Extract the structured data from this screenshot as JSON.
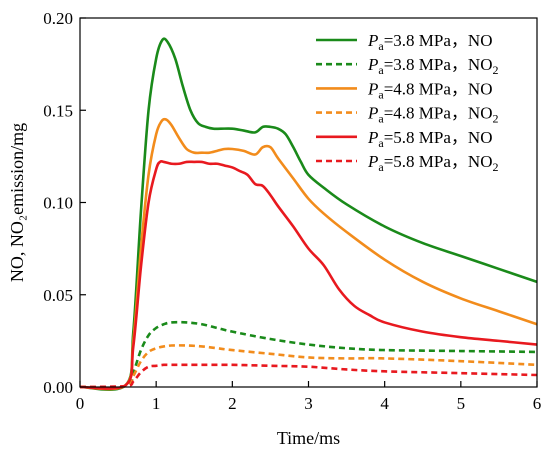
{
  "chart_data": {
    "type": "line",
    "xlabel": "Time/ms",
    "ylabel": "NO, NO₂emission/mg",
    "xlim": [
      0,
      6
    ],
    "ylim": [
      0,
      0.2
    ],
    "x_ticks": [
      0,
      1,
      2,
      3,
      4,
      5,
      6
    ],
    "x_tick_labels": [
      "0",
      "1",
      "2",
      "3",
      "4",
      "5",
      "6"
    ],
    "y_ticks": [
      0,
      0.05,
      0.1,
      0.15,
      0.2
    ],
    "y_tick_labels": [
      "0.00",
      "0.05",
      "0.10",
      "0.15",
      "0.20"
    ],
    "grid": false,
    "legend_position": "top-right",
    "series": [
      {
        "legend": {
          "italic": "P",
          "sub": "a",
          "rest": "=3.8 MPa，NO",
          "sub2": ""
        },
        "color": "#1a8a1a",
        "style": "solid",
        "x": [
          0,
          0.6,
          0.7,
          0.8,
          0.9,
          1.0,
          1.08,
          1.15,
          1.25,
          1.35,
          1.45,
          1.55,
          1.65,
          1.75,
          1.85,
          2.0,
          2.15,
          2.3,
          2.4,
          2.5,
          2.6,
          2.7,
          2.8,
          2.9,
          3.0,
          3.2,
          3.5,
          4.0,
          4.5,
          5.0,
          5.5,
          6.0
        ],
        "y": [
          0,
          0.001,
          0.03,
          0.095,
          0.15,
          0.178,
          0.188,
          0.187,
          0.178,
          0.163,
          0.15,
          0.143,
          0.141,
          0.14,
          0.14,
          0.14,
          0.139,
          0.138,
          0.141,
          0.141,
          0.14,
          0.137,
          0.13,
          0.122,
          0.115,
          0.108,
          0.099,
          0.087,
          0.078,
          0.071,
          0.064,
          0.057
        ]
      },
      {
        "legend": {
          "italic": "P",
          "sub": "a",
          "rest": "=3.8 MPa，NO",
          "sub2": "2"
        },
        "color": "#1a8a1a",
        "style": "dashed",
        "x": [
          0,
          0.6,
          0.7,
          0.8,
          0.9,
          1.0,
          1.1,
          1.2,
          1.4,
          1.6,
          1.8,
          2.0,
          2.5,
          3.0,
          3.5,
          4.0,
          5.0,
          6.0
        ],
        "y": [
          0,
          0.0005,
          0.008,
          0.02,
          0.028,
          0.032,
          0.034,
          0.035,
          0.035,
          0.034,
          0.032,
          0.03,
          0.026,
          0.023,
          0.021,
          0.02,
          0.0195,
          0.019
        ]
      },
      {
        "legend": {
          "italic": "P",
          "sub": "a",
          "rest": "=4.8 MPa，NO",
          "sub2": ""
        },
        "color": "#f28c1c",
        "style": "solid",
        "x": [
          0,
          0.6,
          0.7,
          0.8,
          0.9,
          1.0,
          1.07,
          1.13,
          1.2,
          1.3,
          1.4,
          1.5,
          1.6,
          1.7,
          1.8,
          1.9,
          2.0,
          2.15,
          2.3,
          2.4,
          2.5,
          2.6,
          2.8,
          3.0,
          3.2,
          3.5,
          4.0,
          4.5,
          5.0,
          5.5,
          6.0
        ],
        "y": [
          0,
          0.001,
          0.025,
          0.075,
          0.115,
          0.137,
          0.144,
          0.145,
          0.142,
          0.135,
          0.129,
          0.127,
          0.127,
          0.127,
          0.128,
          0.129,
          0.129,
          0.128,
          0.126,
          0.13,
          0.13,
          0.124,
          0.113,
          0.102,
          0.094,
          0.084,
          0.069,
          0.057,
          0.048,
          0.041,
          0.034
        ]
      },
      {
        "legend": {
          "italic": "P",
          "sub": "a",
          "rest": "=4.8 MPa，NO",
          "sub2": "2"
        },
        "color": "#f28c1c",
        "style": "dashed",
        "x": [
          0,
          0.6,
          0.7,
          0.8,
          0.9,
          1.0,
          1.1,
          1.2,
          1.4,
          1.6,
          1.8,
          2.0,
          2.5,
          3.0,
          3.5,
          4.0,
          5.0,
          6.0
        ],
        "y": [
          0,
          0.0005,
          0.006,
          0.014,
          0.019,
          0.021,
          0.022,
          0.0225,
          0.0225,
          0.022,
          0.021,
          0.02,
          0.018,
          0.016,
          0.0155,
          0.0155,
          0.014,
          0.012
        ]
      },
      {
        "legend": {
          "italic": "P",
          "sub": "a",
          "rest": "=5.8 MPa，NO",
          "sub2": ""
        },
        "color": "#e8191f",
        "style": "solid",
        "x": [
          0,
          0.6,
          0.7,
          0.8,
          0.9,
          1.0,
          1.05,
          1.1,
          1.2,
          1.3,
          1.4,
          1.5,
          1.6,
          1.7,
          1.8,
          1.9,
          2.0,
          2.1,
          2.2,
          2.3,
          2.4,
          2.5,
          2.6,
          2.8,
          3.0,
          3.2,
          3.4,
          3.6,
          3.8,
          4.0,
          4.5,
          5.0,
          5.5,
          6.0
        ],
        "y": [
          0,
          0.001,
          0.022,
          0.065,
          0.1,
          0.118,
          0.122,
          0.122,
          0.121,
          0.121,
          0.122,
          0.122,
          0.122,
          0.121,
          0.121,
          0.12,
          0.119,
          0.117,
          0.115,
          0.11,
          0.109,
          0.104,
          0.098,
          0.087,
          0.075,
          0.066,
          0.053,
          0.044,
          0.039,
          0.035,
          0.03,
          0.027,
          0.025,
          0.023
        ]
      },
      {
        "legend": {
          "italic": "P",
          "sub": "a",
          "rest": "=5.8 MPa，NO",
          "sub2": "2"
        },
        "color": "#e8191f",
        "style": "dashed",
        "x": [
          0,
          0.6,
          0.7,
          0.8,
          0.9,
          1.0,
          1.1,
          1.2,
          1.5,
          2.0,
          2.5,
          3.0,
          3.5,
          4.0,
          5.0,
          6.0
        ],
        "y": [
          0,
          0.0005,
          0.003,
          0.008,
          0.011,
          0.0115,
          0.012,
          0.012,
          0.012,
          0.012,
          0.0115,
          0.011,
          0.0095,
          0.0085,
          0.0075,
          0.0065
        ]
      }
    ]
  }
}
